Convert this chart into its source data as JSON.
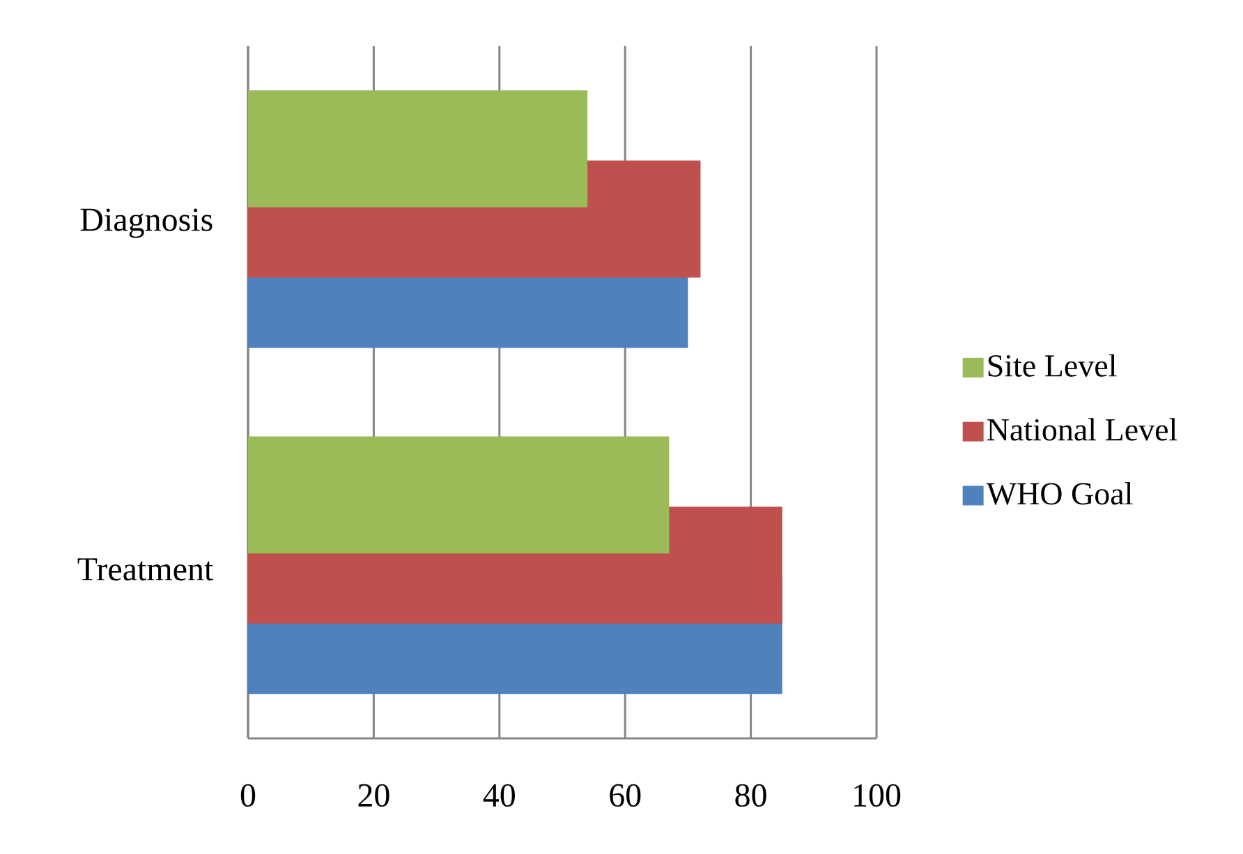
{
  "chart_data": {
    "type": "bar",
    "orientation": "horizontal",
    "categories": [
      "Diagnosis",
      "Treatment"
    ],
    "series": [
      {
        "name": "Site Level",
        "color": "#9bbb59",
        "values": [
          54,
          67
        ]
      },
      {
        "name": "National Level",
        "color": "#c0504d",
        "values": [
          72,
          85
        ]
      },
      {
        "name": "WHO Goal",
        "color": "#4f81bd",
        "values": [
          70,
          85
        ]
      }
    ],
    "xlim": [
      0,
      100
    ],
    "xticks": [
      0,
      20,
      40,
      60,
      80,
      100
    ],
    "grid": "x",
    "legend": "right"
  }
}
